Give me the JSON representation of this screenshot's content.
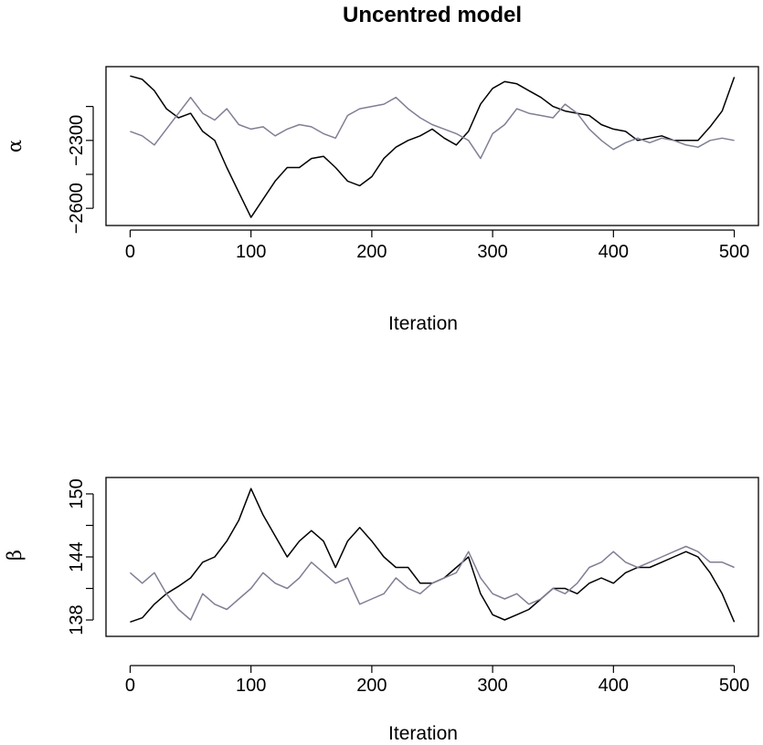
{
  "title": "Uncentred model",
  "colors": {
    "chain_1": "#000000",
    "chain_2": "#7f7f95",
    "axes": "#000000",
    "background": "#ffffff"
  },
  "chart_data": [
    {
      "type": "line",
      "ylabel": "α",
      "xlabel": "Iteration",
      "xlim": [
        0,
        500
      ],
      "ylim": [
        -2650,
        -2000
      ],
      "x_ticks": [
        0,
        100,
        200,
        300,
        400,
        500
      ],
      "x_tick_labels": [
        "0",
        "100",
        "200",
        "300",
        "400",
        "500"
      ],
      "y_ticks": [
        -2600,
        -2450,
        -2300,
        -2150
      ],
      "y_tick_labels": [
        "−2600",
        "−2300"
      ],
      "y_ticks_labeled": [
        -2600,
        -2300
      ],
      "y_ticks_minor": [
        -2050
      ],
      "series": [
        {
          "color": "#000000",
          "x": [
            0,
            10,
            20,
            30,
            40,
            50,
            60,
            70,
            80,
            90,
            100,
            110,
            120,
            130,
            140,
            150,
            160,
            170,
            180,
            190,
            200,
            210,
            220,
            230,
            240,
            250,
            260,
            270,
            280,
            290,
            300,
            310,
            320,
            330,
            340,
            350,
            360,
            370,
            380,
            390,
            400,
            410,
            420,
            430,
            440,
            450,
            460,
            470,
            480,
            490,
            500
          ],
          "y": [
            -2015,
            -2030,
            -2080,
            -2160,
            -2200,
            -2180,
            -2260,
            -2300,
            -2420,
            -2530,
            -2640,
            -2560,
            -2480,
            -2420,
            -2420,
            -2380,
            -2370,
            -2420,
            -2480,
            -2500,
            -2460,
            -2380,
            -2330,
            -2300,
            -2280,
            -2250,
            -2290,
            -2320,
            -2260,
            -2140,
            -2070,
            -2040,
            -2050,
            -2080,
            -2110,
            -2150,
            -2170,
            -2180,
            -2190,
            -2230,
            -2250,
            -2260,
            -2300,
            -2290,
            -2280,
            -2300,
            -2300,
            -2300,
            -2240,
            -2170,
            -2020
          ]
        },
        {
          "color": "#7f7f95",
          "x": [
            0,
            10,
            20,
            30,
            40,
            50,
            60,
            70,
            80,
            90,
            100,
            110,
            120,
            130,
            140,
            150,
            160,
            170,
            180,
            190,
            200,
            210,
            220,
            230,
            240,
            250,
            260,
            270,
            280,
            290,
            300,
            310,
            320,
            330,
            340,
            350,
            360,
            370,
            380,
            390,
            400,
            410,
            420,
            430,
            440,
            450,
            460,
            470,
            480,
            490,
            500
          ],
          "y": [
            -2260,
            -2280,
            -2320,
            -2250,
            -2180,
            -2110,
            -2180,
            -2210,
            -2160,
            -2230,
            -2250,
            -2240,
            -2280,
            -2250,
            -2230,
            -2240,
            -2270,
            -2290,
            -2190,
            -2160,
            -2150,
            -2140,
            -2110,
            -2160,
            -2200,
            -2230,
            -2250,
            -2270,
            -2300,
            -2380,
            -2270,
            -2230,
            -2160,
            -2180,
            -2190,
            -2200,
            -2140,
            -2180,
            -2250,
            -2300,
            -2340,
            -2310,
            -2290,
            -2310,
            -2290,
            -2300,
            -2320,
            -2330,
            -2300,
            -2290,
            -2300
          ]
        }
      ]
    },
    {
      "type": "line",
      "ylabel": "β",
      "xlabel": "Iteration",
      "xlim": [
        0,
        500
      ],
      "ylim": [
        137,
        151
      ],
      "x_ticks": [
        0,
        100,
        200,
        300,
        400,
        500
      ],
      "x_tick_labels": [
        "0",
        "100",
        "200",
        "300",
        "400",
        "500"
      ],
      "y_ticks": [
        138,
        141,
        144,
        147,
        150
      ],
      "y_tick_labels": [
        "138",
        "144",
        "150"
      ],
      "y_ticks_labeled": [
        138,
        144,
        150
      ],
      "y_ticks_minor": [
        141,
        147
      ],
      "series": [
        {
          "color": "#000000",
          "x": [
            0,
            10,
            20,
            30,
            40,
            50,
            60,
            70,
            80,
            90,
            100,
            110,
            120,
            130,
            140,
            150,
            160,
            170,
            180,
            190,
            200,
            210,
            220,
            230,
            240,
            250,
            260,
            270,
            280,
            290,
            300,
            310,
            320,
            330,
            340,
            350,
            360,
            370,
            380,
            390,
            400,
            410,
            420,
            430,
            440,
            450,
            460,
            470,
            480,
            490,
            500
          ],
          "y": [
            137.8,
            138.2,
            139.5,
            140.5,
            141.2,
            142.0,
            143.5,
            144.0,
            145.5,
            147.5,
            150.5,
            148.0,
            146.0,
            144.0,
            145.5,
            146.5,
            145.5,
            143.0,
            145.5,
            146.8,
            145.5,
            144.0,
            143.0,
            143.0,
            141.5,
            141.5,
            142.0,
            143.0,
            144.0,
            140.5,
            138.5,
            138.0,
            138.5,
            139.0,
            140.0,
            141.0,
            141.0,
            140.5,
            141.5,
            142.0,
            141.5,
            142.5,
            143.0,
            143.0,
            143.5,
            144.0,
            144.5,
            144.0,
            142.5,
            140.5,
            137.8
          ]
        },
        {
          "color": "#7f7f95",
          "x": [
            0,
            10,
            20,
            30,
            40,
            50,
            60,
            70,
            80,
            90,
            100,
            110,
            120,
            130,
            140,
            150,
            160,
            170,
            180,
            190,
            200,
            210,
            220,
            230,
            240,
            250,
            260,
            270,
            280,
            290,
            300,
            310,
            320,
            330,
            340,
            350,
            360,
            370,
            380,
            390,
            400,
            410,
            420,
            430,
            440,
            450,
            460,
            470,
            480,
            490,
            500
          ],
          "y": [
            142.5,
            141.5,
            142.5,
            140.5,
            139.0,
            138.0,
            140.5,
            139.5,
            139.0,
            140.0,
            141.0,
            142.5,
            141.5,
            141.0,
            142.0,
            143.5,
            142.5,
            141.5,
            142.0,
            139.5,
            140.0,
            140.5,
            142.0,
            141.0,
            140.5,
            141.5,
            142.0,
            142.5,
            144.5,
            142.0,
            140.5,
            140.0,
            140.5,
            139.5,
            140.0,
            141.0,
            140.5,
            141.5,
            143.0,
            143.5,
            144.5,
            143.5,
            143.0,
            143.5,
            144.0,
            144.5,
            145.0,
            144.5,
            143.5,
            143.5,
            143.0
          ]
        }
      ]
    }
  ]
}
